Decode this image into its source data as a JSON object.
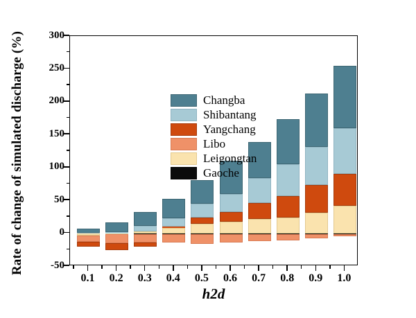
{
  "chart_data": {
    "type": "bar",
    "stacked": true,
    "title": "",
    "xlabel": "h2d",
    "ylabel": "Rate of change of simulated discharge (%)",
    "ylim": [
      -50,
      300
    ],
    "yticks": [
      -50,
      0,
      50,
      100,
      150,
      200,
      250,
      300
    ],
    "y_minor_step": 25,
    "grid": false,
    "legend_position": "top-left-inside",
    "categories": [
      "0.1",
      "0.2",
      "0.3",
      "0.4",
      "0.5",
      "0.6",
      "0.7",
      "0.8",
      "0.9",
      "1.0"
    ],
    "series": [
      {
        "name": "Changba",
        "color": "#4e7f90",
        "border": "#3d6673",
        "values": [
          6,
          14,
          21,
          29,
          36,
          50,
          55,
          69,
          81,
          95
        ]
      },
      {
        "name": "Shibantang",
        "color": "#a7cad5",
        "border": "#8fb4c1",
        "values": [
          1,
          2,
          8,
          13,
          21,
          28,
          38,
          49,
          58,
          70
        ]
      },
      {
        "name": "Yangchang",
        "color": "#cf4a0e",
        "border": "#a63a0a",
        "values": [
          -7,
          -10,
          -6,
          2,
          10,
          15,
          24,
          32,
          42,
          48
        ]
      },
      {
        "name": "Libo",
        "color": "#ef9168",
        "border": "#d97a52",
        "values": [
          -10,
          -14,
          -13,
          -13,
          -15,
          -13,
          -11,
          -9,
          -7,
          -4
        ]
      },
      {
        "name": "Leigongtan",
        "color": "#fae3ae",
        "border": "#e3c98e",
        "values": [
          -3,
          -1,
          3,
          8,
          14,
          17,
          22,
          24,
          31,
          42
        ]
      },
      {
        "name": "Gaoche",
        "color": "#0b0b0b",
        "border": "#000000",
        "values": [
          -0.5,
          -0.5,
          -1,
          -1.5,
          -1.5,
          -1,
          -1.5,
          -1.5,
          -1,
          -1
        ]
      }
    ]
  }
}
